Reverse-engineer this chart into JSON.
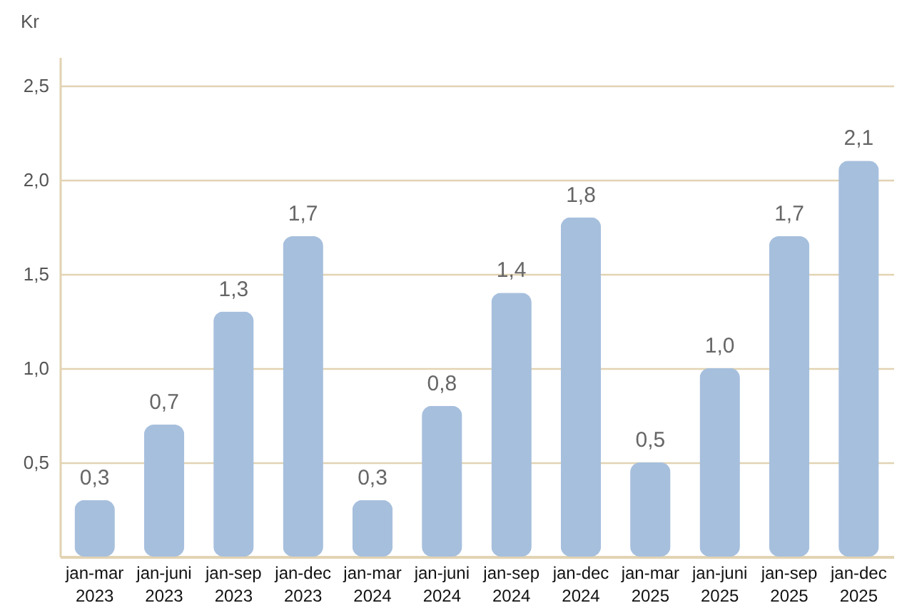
{
  "chart_data": {
    "type": "bar",
    "ylabel": "Kr",
    "categories": [
      "jan-mar 2023",
      "jan-juni 2023",
      "jan-sep 2023",
      "jan-dec 2023",
      "jan-mar 2024",
      "jan-juni 2024",
      "jan-sep 2024",
      "jan-dec 2024",
      "jan-mar 2025",
      "jan-juni 2025",
      "jan-sep 2025",
      "jan-dec 2025"
    ],
    "values": [
      0.3,
      0.7,
      1.3,
      1.7,
      0.3,
      0.8,
      1.4,
      1.8,
      0.5,
      1.0,
      1.7,
      2.1
    ],
    "color": "#a6bfdd",
    "ylim": [
      0,
      2.65
    ],
    "yticks": [
      {
        "value": 0.5,
        "label": "0,5"
      },
      {
        "value": 1.0,
        "label": "1,0"
      },
      {
        "value": 1.5,
        "label": "1,5"
      },
      {
        "value": 2.0,
        "label": "2,0"
      },
      {
        "value": 2.5,
        "label": "2,5"
      }
    ],
    "value_labels": [
      "0,3",
      "0,7",
      "1,3",
      "1,7",
      "0,3",
      "0,8",
      "1,4",
      "1,8",
      "0,5",
      "1,0",
      "1,7",
      "2,1"
    ],
    "grid": "y"
  }
}
